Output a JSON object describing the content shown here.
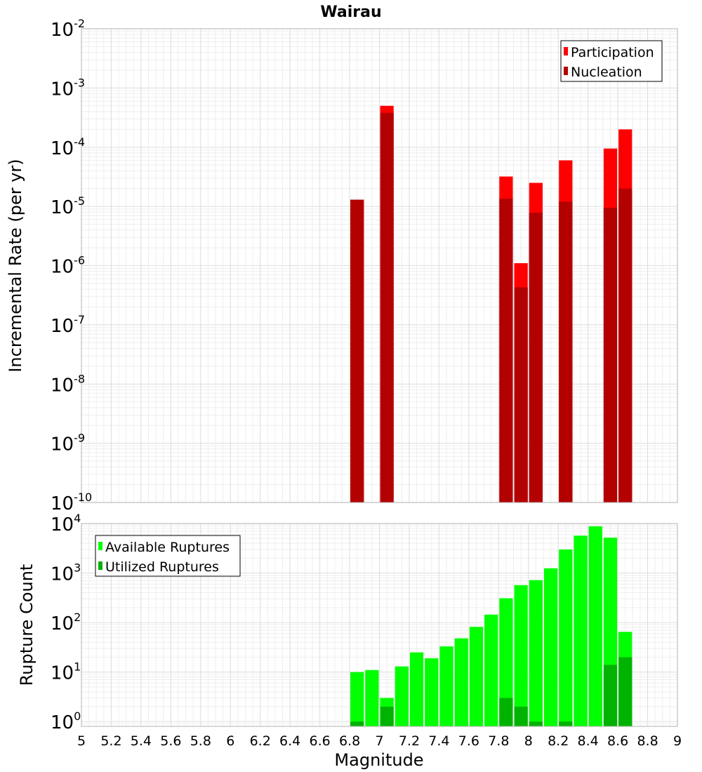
{
  "chart_data": {
    "title": "Wairau",
    "xlabel": "Magnitude",
    "xlim": [
      5,
      9
    ],
    "xticks": [
      "5",
      "5.2",
      "5.4",
      "5.6",
      "5.8",
      "6",
      "6.2",
      "6.4",
      "6.6",
      "6.8",
      "7",
      "7.2",
      "7.4",
      "7.6",
      "7.8",
      "8",
      "8.2",
      "8.4",
      "8.6",
      "8.8",
      "9"
    ],
    "grid": true,
    "bin_width": 0.1,
    "panels": [
      {
        "type": "bar",
        "ylabel": "Incremental Rate (per yr)",
        "yscale": "log",
        "ylim": [
          1e-10,
          0.01
        ],
        "ytick_exponents": [
          -10,
          -9,
          -8,
          -7,
          -6,
          -5,
          -4,
          -3,
          -2
        ],
        "legend": {
          "position": "top-right",
          "entries": [
            "Participation",
            "Nucleation"
          ]
        },
        "colors": {
          "Participation": "#ff0000",
          "Nucleation": "#b30000"
        },
        "x": [
          6.85,
          7.05,
          7.85,
          7.95,
          8.05,
          8.25,
          8.55,
          8.65
        ],
        "series": [
          {
            "name": "Participation",
            "values": [
              1.3e-05,
              0.0005,
              3.2e-05,
              1.1e-06,
              2.5e-05,
              6e-05,
              9.5e-05,
              0.0002
            ]
          },
          {
            "name": "Nucleation",
            "values": [
              1.3e-05,
              0.00038,
              1.35e-05,
              4.3e-07,
              7.8e-06,
              1.2e-05,
              9.5e-06,
              2e-05
            ]
          }
        ]
      },
      {
        "type": "bar",
        "ylabel": "Rupture Count",
        "yscale": "log",
        "ylim": [
          0.8,
          10000
        ],
        "ytick_exponents": [
          0,
          1,
          2,
          3,
          4
        ],
        "legend": {
          "position": "top-left",
          "entries": [
            "Available Ruptures",
            "Utilized Ruptures"
          ]
        },
        "colors": {
          "Available Ruptures": "#00ff00",
          "Utilized Ruptures": "#00b300"
        },
        "x": [
          6.85,
          6.95,
          7.05,
          7.15,
          7.25,
          7.35,
          7.45,
          7.55,
          7.65,
          7.75,
          7.85,
          7.95,
          8.05,
          8.15,
          8.25,
          8.35,
          8.45,
          8.55,
          8.65
        ],
        "series": [
          {
            "name": "Available Ruptures",
            "values": [
              10,
              11,
              3,
              13,
              25,
              19,
              33,
              48,
              82,
              145,
              310,
              570,
              720,
              1250,
              3000,
              5700,
              8800,
              5200,
              65
            ]
          },
          {
            "name": "Utilized Ruptures",
            "values": [
              1,
              0,
              2,
              0,
              0,
              0,
              0,
              0,
              0,
              0,
              3,
              2,
              1,
              0,
              1,
              0,
              0,
              14,
              20
            ]
          }
        ]
      }
    ]
  }
}
